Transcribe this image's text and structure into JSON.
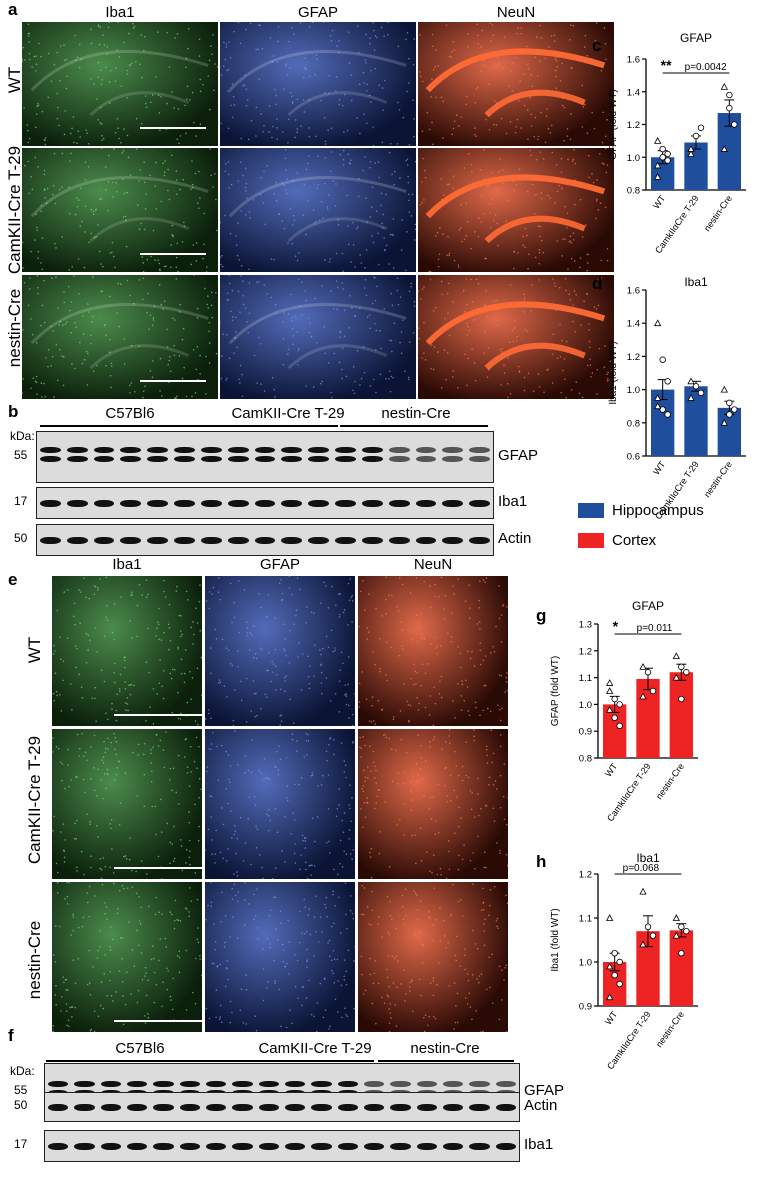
{
  "panels": {
    "a": {
      "label": "a"
    },
    "b": {
      "label": "b"
    },
    "c": {
      "label": "c"
    },
    "d": {
      "label": "d"
    },
    "e": {
      "label": "e"
    },
    "f": {
      "label": "f"
    },
    "g": {
      "label": "g"
    },
    "h": {
      "label": "h"
    }
  },
  "micro_columns": [
    "Iba1",
    "GFAP",
    "NeuN"
  ],
  "micro_rows": [
    "WT",
    "CamKII-Cre T-29",
    "nestin-Cre"
  ],
  "colors": {
    "iba1_green": "#1f6e1f",
    "gfap_blue": "#2747a8",
    "neun_red": "#d8431c",
    "hippocampus": "#1f4e9c",
    "cortex": "#ee2323"
  },
  "blot_b": {
    "groups": [
      "C57Bl6",
      "CamKII-Cre T-29",
      "nestin-Cre"
    ],
    "kda_label": "kDa:",
    "rows": [
      {
        "marker": "55",
        "protein": "GFAP"
      },
      {
        "marker": "17",
        "protein": "Iba1"
      },
      {
        "marker": "50",
        "protein": "Actin"
      }
    ]
  },
  "blot_f": {
    "groups": [
      "C57Bl6",
      "CamKII-Cre T-29",
      "nestin-Cre"
    ],
    "kda_label": "kDa:",
    "rows": [
      {
        "marker": "55",
        "protein": "GFAP"
      },
      {
        "marker": "17",
        "protein": "Iba1"
      },
      {
        "marker": "50",
        "protein": "Actin"
      }
    ]
  },
  "legend": [
    {
      "name": "Hippocampus",
      "color": "#1f4e9c"
    },
    {
      "name": "Cortex",
      "color": "#ee2323"
    }
  ],
  "chart_data": [
    {
      "id": "c",
      "type": "bar",
      "title": "GFAP",
      "ylabel": "GFAP (fold WT)",
      "categories": [
        "WT",
        "CamkIIαCre T-29",
        "nestin-Cre"
      ],
      "values": [
        1.0,
        1.09,
        1.27
      ],
      "errors": [
        0.04,
        0.04,
        0.08
      ],
      "ylim": [
        0.8,
        1.6
      ],
      "yticks": [
        "0.8",
        "1.0",
        "1.2",
        "1.4",
        "1.6"
      ],
      "color": "#1f4e9c",
      "points": [
        [
          0.95,
          1.0,
          1.02,
          0.88,
          1.05,
          0.98,
          1.1
        ],
        [
          1.02,
          1.13,
          1.18,
          1.05
        ],
        [
          1.43,
          1.3,
          1.2,
          1.05,
          1.38
        ]
      ],
      "significance": {
        "stars": "**",
        "text": "p=0.0042",
        "from": 0,
        "to": 2
      }
    },
    {
      "id": "d",
      "type": "bar",
      "title": "Iba1",
      "ylabel": "Iba1 (fold WT)",
      "categories": [
        "WT",
        "CamkIIαCre T-29",
        "nestin-Cre"
      ],
      "values": [
        1.0,
        1.02,
        0.89
      ],
      "errors": [
        0.06,
        0.03,
        0.04
      ],
      "ylim": [
        0.6,
        1.6
      ],
      "yticks": [
        "0.6",
        "0.8",
        "1.0",
        "1.2",
        "1.4",
        "1.6"
      ],
      "color": "#1f4e9c",
      "points": [
        [
          1.4,
          1.18,
          1.05,
          0.95,
          0.88,
          0.85,
          0.9
        ],
        [
          1.05,
          1.02,
          0.98,
          0.95
        ],
        [
          1.0,
          0.92,
          0.88,
          0.8,
          0.85
        ]
      ],
      "significance": null
    },
    {
      "id": "g",
      "type": "bar",
      "title": "GFAP",
      "ylabel": "GFAP (fold WT)",
      "categories": [
        "WT",
        "CamkIIαCre T-29",
        "nestin-Cre"
      ],
      "values": [
        1.0,
        1.095,
        1.12
      ],
      "errors": [
        0.03,
        0.04,
        0.03
      ],
      "ylim": [
        0.8,
        1.3
      ],
      "yticks": [
        "0.8",
        "0.9",
        "1.0",
        "1.1",
        "1.2",
        "1.3"
      ],
      "color": "#ee2323",
      "points": [
        [
          1.08,
          1.02,
          1.0,
          0.98,
          0.95,
          0.92,
          1.05
        ],
        [
          1.14,
          1.12,
          1.05,
          1.03
        ],
        [
          1.18,
          1.14,
          1.12,
          1.1,
          1.02
        ]
      ],
      "significance": {
        "stars": "*",
        "text": "p=0.011",
        "from": 0,
        "to": 2
      }
    },
    {
      "id": "h",
      "type": "bar",
      "title": "Iba1",
      "ylabel": "Iba1 (fold WT)",
      "categories": [
        "WT",
        "CamkIIαCre T-29",
        "nestin-Cre"
      ],
      "values": [
        1.0,
        1.07,
        1.072
      ],
      "errors": [
        0.02,
        0.035,
        0.015
      ],
      "ylim": [
        0.9,
        1.2
      ],
      "yticks": [
        "0.9",
        "1.0",
        "1.1",
        "1.2"
      ],
      "color": "#ee2323",
      "points": [
        [
          1.1,
          1.02,
          1.0,
          0.99,
          0.97,
          0.95,
          0.92
        ],
        [
          1.16,
          1.08,
          1.06,
          1.04
        ],
        [
          1.1,
          1.08,
          1.07,
          1.06,
          1.02
        ]
      ],
      "significance": {
        "stars": "",
        "text": "p=0.068",
        "from": 0,
        "to": 2
      }
    }
  ]
}
